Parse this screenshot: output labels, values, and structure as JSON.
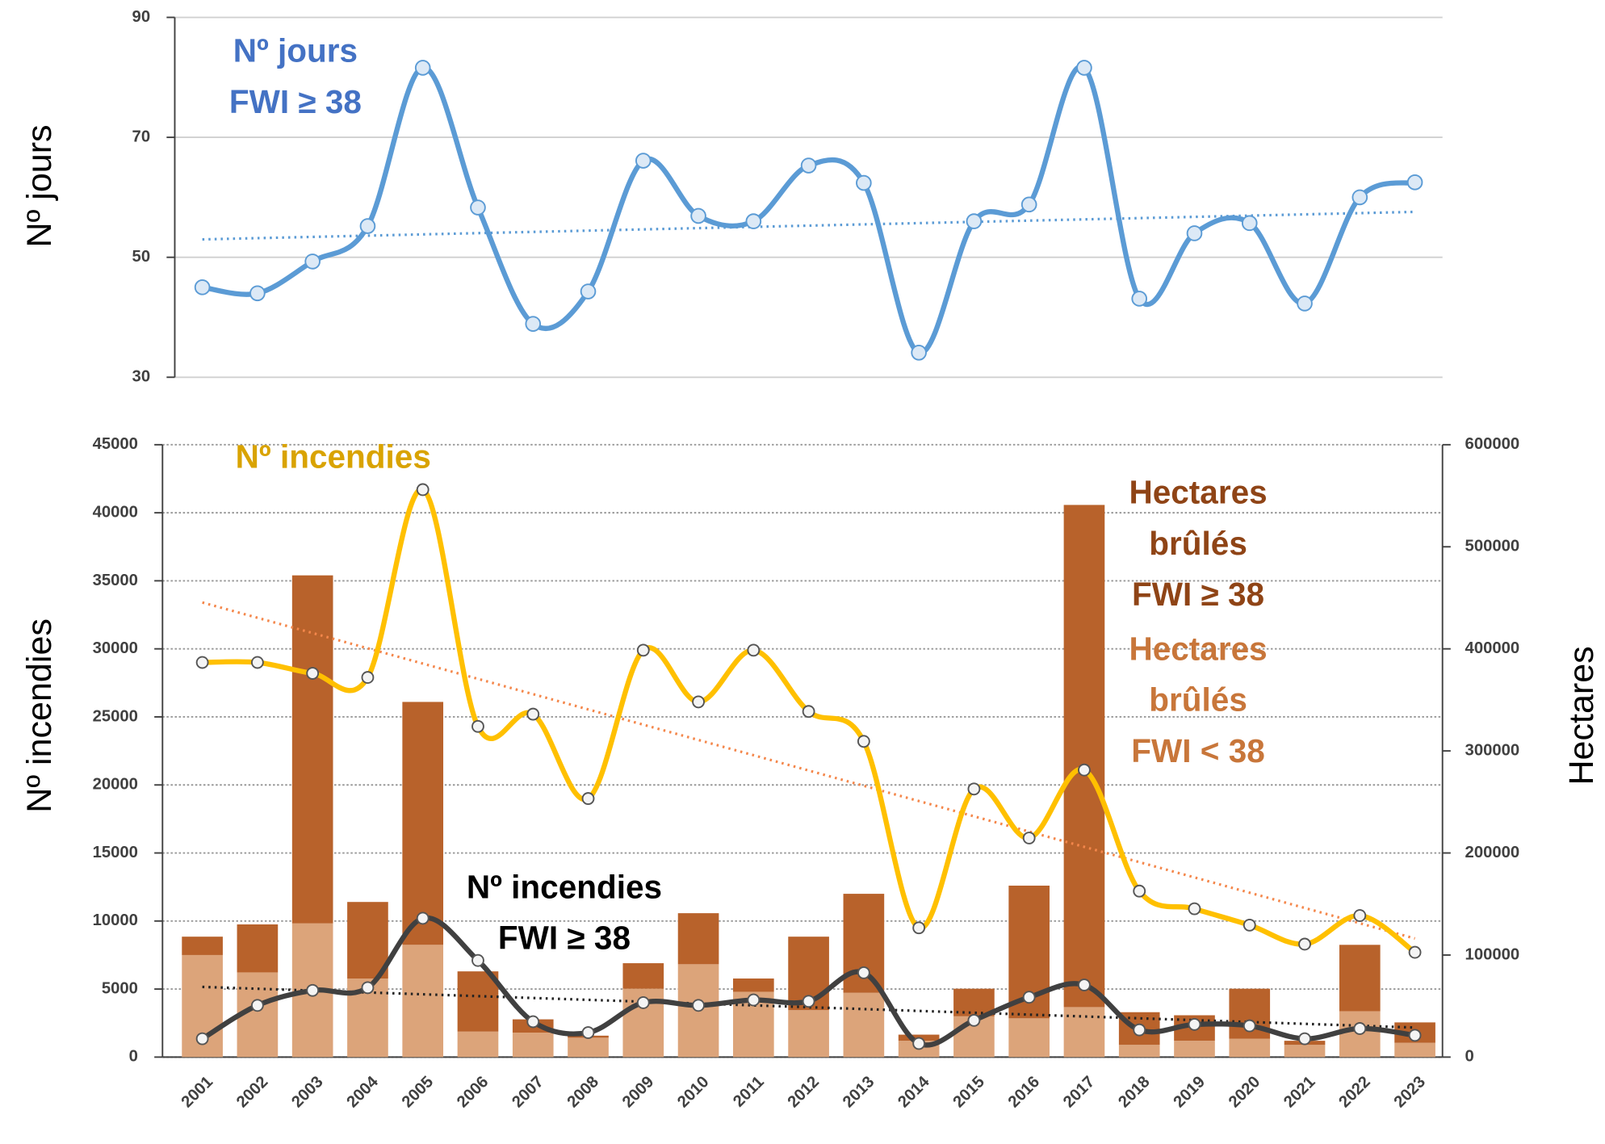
{
  "chart_data": [
    {
      "type": "line",
      "y_label": "Nº jours",
      "ylim": [
        30,
        90
      ],
      "yticks": [
        30,
        50,
        70,
        90
      ],
      "grid": true,
      "series": [
        {
          "label": [
            "Nº jours",
            "FWI ≥ 38"
          ],
          "color": "#5b9bd5",
          "label_color": "#4472c4",
          "smooth": true,
          "trend": true,
          "trend_color": "#5b9bd5",
          "values": [
            45,
            44,
            49.3,
            55.2,
            81.6,
            58.3,
            38.9,
            44.3,
            66.1,
            56.9,
            56,
            65.3,
            62.4,
            34.1,
            56,
            58.8,
            81.6,
            43.1,
            54,
            55.7,
            42.3,
            60,
            62.5
          ]
        }
      ]
    },
    {
      "type": "combo",
      "y_label": "Nº incendies",
      "y2_label": "Hectares",
      "categories": [
        "2001",
        "2002",
        "2003",
        "2004",
        "2005",
        "2006",
        "2007",
        "2008",
        "2009",
        "2010",
        "2011",
        "2012",
        "2013",
        "2014",
        "2015",
        "2016",
        "2017",
        "2018",
        "2019",
        "2020",
        "2021",
        "2022",
        "2023"
      ],
      "ylim": [
        0,
        45000
      ],
      "yticks": [
        0,
        5000,
        10000,
        15000,
        20000,
        25000,
        30000,
        35000,
        40000,
        45000
      ],
      "y2lim": [
        0,
        600000
      ],
      "y2ticks": [
        0,
        100000,
        200000,
        300000,
        400000,
        500000,
        600000
      ],
      "grid": true,
      "series": [
        {
          "label": [
            "Hectares",
            "brûlés",
            "FWI < 38"
          ],
          "kind": "bar",
          "axis": "y2",
          "stack": true,
          "color": "#dca47a",
          "label_color": "#c8763a",
          "values": [
            100000,
            83000,
            131000,
            77000,
            110000,
            25000,
            24000,
            19000,
            67000,
            91000,
            64000,
            46000,
            63000,
            16000,
            40000,
            38000,
            49000,
            12000,
            16000,
            18000,
            12000,
            45000,
            14000
          ]
        },
        {
          "label": [
            "Hectares",
            "brûlés",
            "FWI ≥ 38"
          ],
          "kind": "bar",
          "axis": "y2",
          "stack": true,
          "color": "#b8622b",
          "label_color": "#8f4416",
          "values": [
            18000,
            47000,
            341000,
            75000,
            238000,
            59000,
            13000,
            2000,
            25000,
            50000,
            13000,
            72000,
            97000,
            6000,
            27000,
            130000,
            492000,
            32000,
            25000,
            49000,
            4000,
            65000,
            20000
          ]
        },
        {
          "label": [
            "Nº incendies"
          ],
          "kind": "line",
          "color": "#ffc000",
          "label_color": "#d9a300",
          "smooth": true,
          "trend": true,
          "trend_color": "#f4874b",
          "values": [
            29000,
            29000,
            28200,
            27900,
            41700,
            24300,
            25200,
            19000,
            29900,
            26100,
            29900,
            25400,
            23200,
            9500,
            19700,
            16100,
            21100,
            12200,
            10900,
            9700,
            8300,
            10400,
            7700
          ]
        },
        {
          "label": [
            "Nº incendies",
            "FWI ≥ 38"
          ],
          "kind": "line",
          "color": "#404040",
          "label_color": "#000000",
          "smooth": true,
          "trend": true,
          "trend_color": "#222222",
          "values": [
            1350,
            3800,
            4900,
            5100,
            10200,
            7100,
            2600,
            1800,
            4000,
            3800,
            4200,
            4100,
            6200,
            1000,
            2700,
            4400,
            5300,
            2000,
            2400,
            2300,
            1350,
            2100,
            1600
          ]
        }
      ]
    }
  ]
}
